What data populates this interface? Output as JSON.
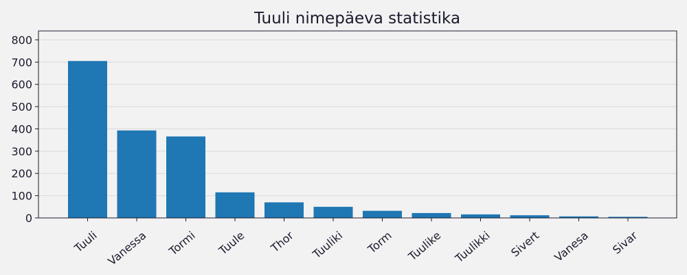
{
  "chart_data": {
    "type": "bar",
    "title": "Tuuli nimepäeva statistika",
    "xlabel": "",
    "ylabel": "",
    "categories": [
      "Tuuli",
      "Vanessa",
      "Tormi",
      "Tuule",
      "Thor",
      "Tuuliki",
      "Torm",
      "Tuulike",
      "Tuulikki",
      "Sivert",
      "Vanesa",
      "Sivar"
    ],
    "values": [
      705,
      393,
      366,
      115,
      70,
      50,
      32,
      22,
      16,
      12,
      7,
      5
    ],
    "ylim": [
      0,
      840
    ],
    "yticks": [
      0,
      100,
      200,
      300,
      400,
      500,
      600,
      700,
      800
    ],
    "grid": "horizontal",
    "bar_color": "#1f77b4",
    "background_color": "#f2f2f2"
  }
}
